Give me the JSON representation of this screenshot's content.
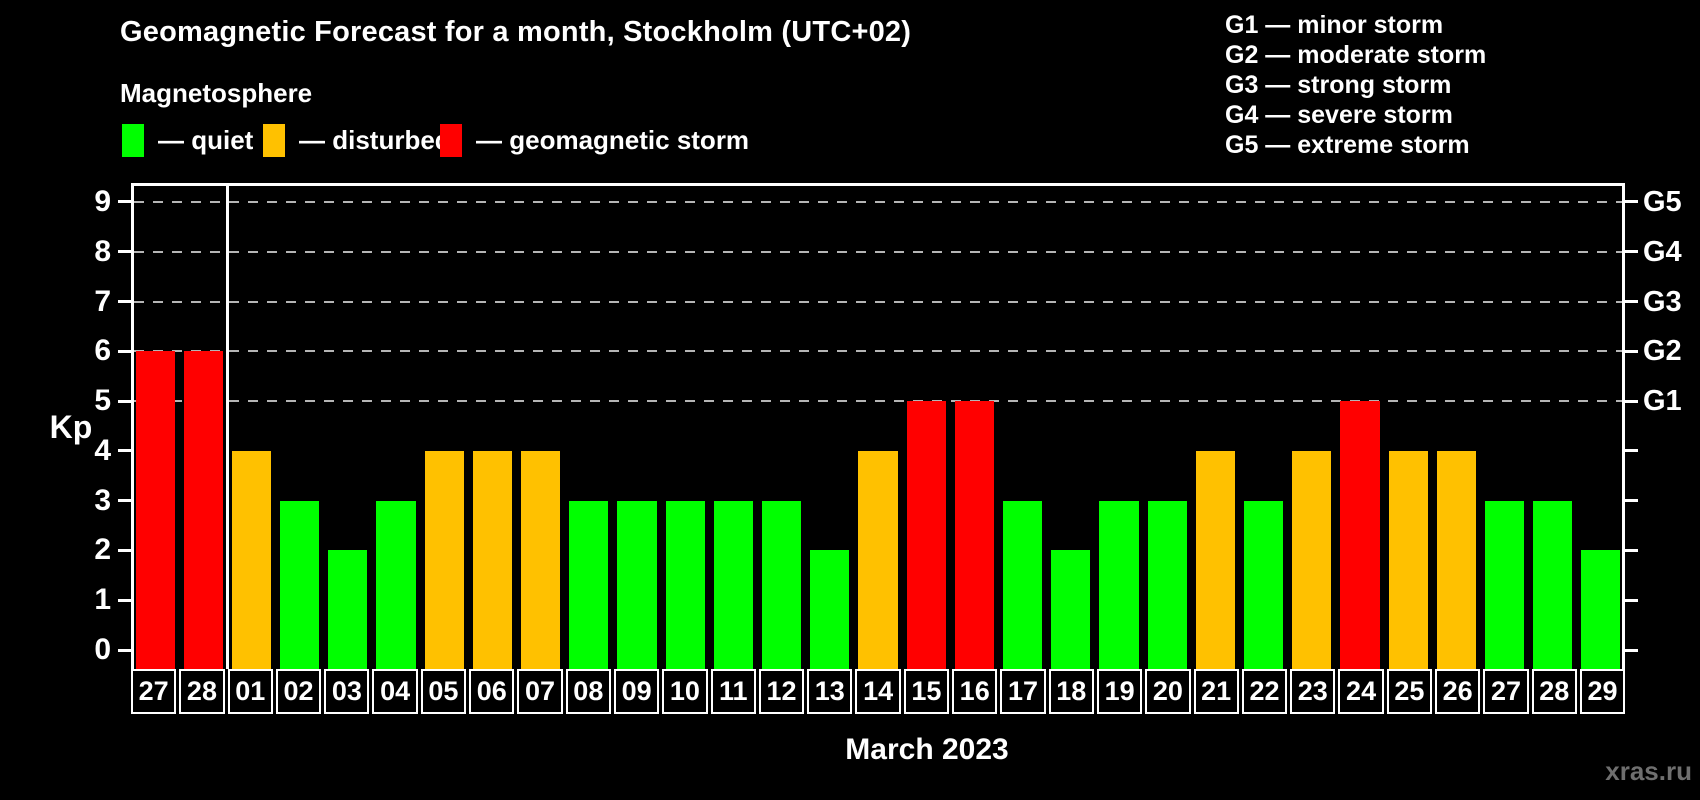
{
  "title": "Geomagnetic Forecast for a month, Stockholm (UTC+02)",
  "subtitle": "Magnetosphere",
  "legend": {
    "items": [
      {
        "name": "quiet",
        "label": "— quiet",
        "color": "#00ff00"
      },
      {
        "name": "disturbed",
        "label": "— disturbed",
        "color": "#ffc100"
      },
      {
        "name": "storm",
        "label": "— geomagnetic storm",
        "color": "#ff0000"
      }
    ]
  },
  "g_legend": {
    "items": [
      "G1 — minor storm",
      "G2 — moderate storm",
      "G3 — strong storm",
      "G4 — severe storm",
      "G5 — extreme storm"
    ]
  },
  "y_axis": {
    "label": "Kp",
    "ticks": [
      0,
      1,
      2,
      3,
      4,
      5,
      6,
      7,
      8,
      9
    ]
  },
  "right_axis": {
    "labels": [
      {
        "kp": 5,
        "label": "G1"
      },
      {
        "kp": 6,
        "label": "G2"
      },
      {
        "kp": 7,
        "label": "G3"
      },
      {
        "kp": 8,
        "label": "G4"
      },
      {
        "kp": 9,
        "label": "G5"
      }
    ]
  },
  "x_axis": {
    "title": "March 2023"
  },
  "watermark": "xras.ru",
  "chart_data": {
    "type": "bar",
    "title": "Geomagnetic Forecast for a month, Stockholm (UTC+02)",
    "subtitle": "Magnetosphere",
    "xlabel": "March 2023",
    "ylabel": "Kp",
    "ylim": [
      -0.38,
      9.38
    ],
    "grid": "dashed horizontal at Kp 5-9 only",
    "gridlines_at_kp": [
      5,
      6,
      7,
      8,
      9
    ],
    "month_boundary_after_index": 1,
    "categories": [
      "27",
      "28",
      "01",
      "02",
      "03",
      "04",
      "05",
      "06",
      "07",
      "08",
      "09",
      "10",
      "11",
      "12",
      "13",
      "14",
      "15",
      "16",
      "17",
      "18",
      "19",
      "20",
      "21",
      "22",
      "23",
      "24",
      "25",
      "26",
      "27",
      "28",
      "29"
    ],
    "values": [
      6,
      6,
      4,
      3,
      2,
      3,
      4,
      4,
      4,
      3,
      3,
      3,
      3,
      3,
      2,
      4,
      5,
      5,
      3,
      2,
      3,
      3,
      4,
      3,
      4,
      5,
      4,
      4,
      3,
      3,
      2
    ],
    "statuses": [
      "storm",
      "storm",
      "disturbed",
      "quiet",
      "quiet",
      "quiet",
      "disturbed",
      "disturbed",
      "disturbed",
      "quiet",
      "quiet",
      "quiet",
      "quiet",
      "quiet",
      "quiet",
      "disturbed",
      "storm",
      "storm",
      "quiet",
      "quiet",
      "quiet",
      "quiet",
      "disturbed",
      "quiet",
      "disturbed",
      "storm",
      "disturbed",
      "disturbed",
      "quiet",
      "quiet",
      "quiet"
    ],
    "status_colors": {
      "quiet": "#00ff00",
      "disturbed": "#ffc100",
      "storm": "#ff0000"
    }
  }
}
